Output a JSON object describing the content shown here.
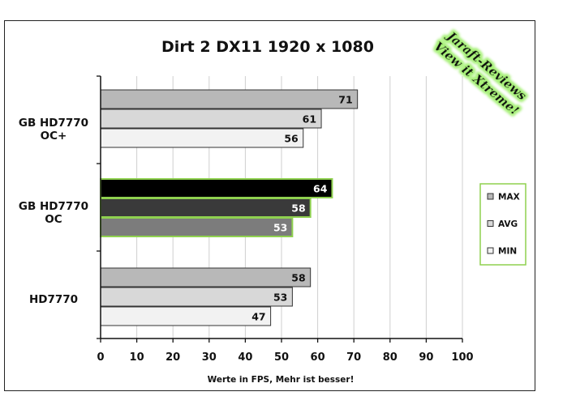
{
  "chart_data": {
    "type": "bar",
    "orientation": "horizontal",
    "title": "Dirt 2 DX11 1920 x 1080",
    "xlabel": "Werte in FPS, Mehr ist besser!",
    "ylabel": "",
    "xlim": [
      0,
      100
    ],
    "x_ticks": [
      0,
      10,
      20,
      30,
      40,
      50,
      60,
      70,
      80,
      90,
      100
    ],
    "grid": "vertical",
    "legend_position": "right",
    "categories": [
      "GB HD7770 OC+",
      "GB HD7770 OC",
      "HD7770"
    ],
    "category_label_lines": [
      [
        "GB HD7770",
        "OC+"
      ],
      [
        "GB HD7770",
        "OC"
      ],
      [
        "HD7770"
      ]
    ],
    "series": [
      {
        "name": "MAX",
        "values": [
          71,
          64,
          58
        ]
      },
      {
        "name": "AVG",
        "values": [
          61,
          58,
          53
        ]
      },
      {
        "name": "MIN",
        "values": [
          56,
          53,
          47
        ]
      }
    ],
    "colors": {
      "default": {
        "MAX": "#b8b8b8",
        "AVG": "#d8d8d8",
        "MIN": "#f2f2f2"
      },
      "highlight": {
        "MAX": "#000000",
        "AVG": "#3a3a3a",
        "MIN": "#7c7c7c"
      },
      "highlight_border": "#8fd14f",
      "default_border": "#333333"
    },
    "highlighted_category": "GB HD7770 OC"
  },
  "watermark": {
    "line1": "Jaraft-Reviews",
    "line2": "View it Xtreme!",
    "glow_color": "#a8f07a"
  }
}
